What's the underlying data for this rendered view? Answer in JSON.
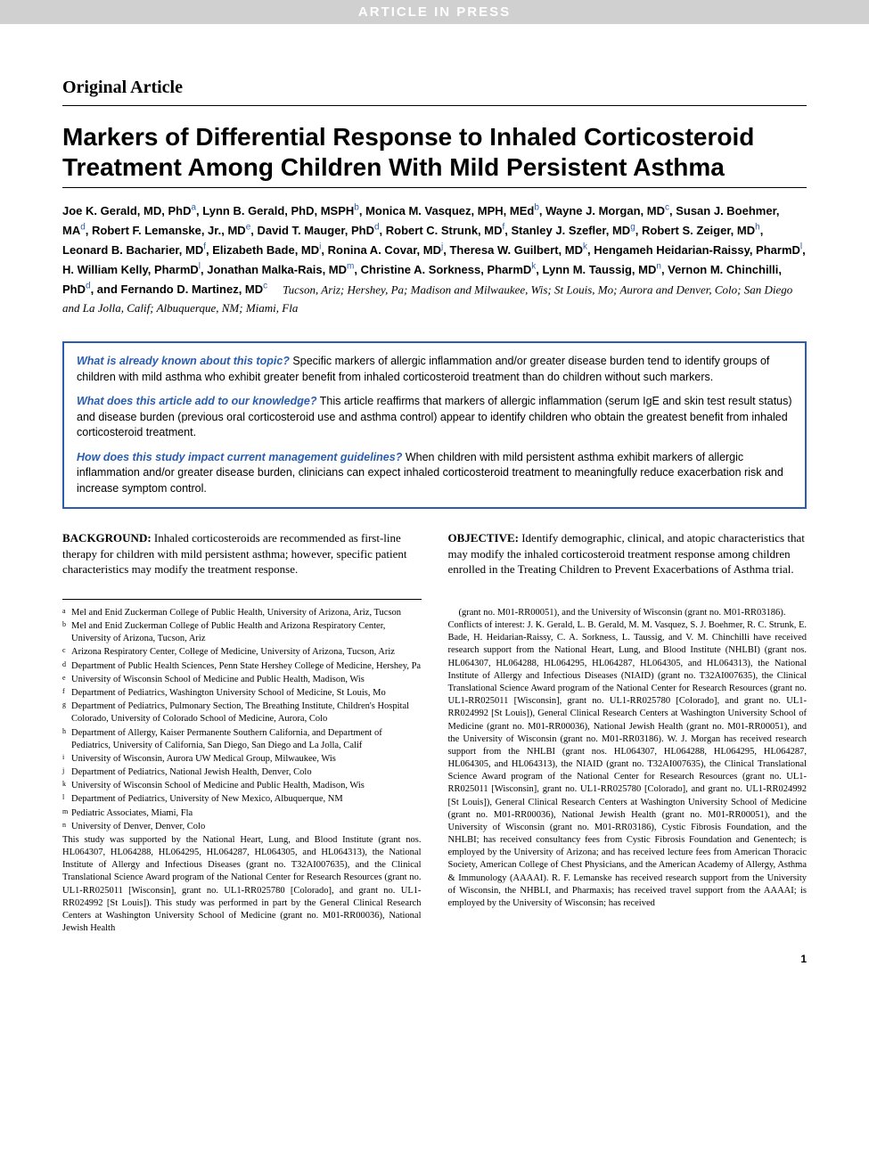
{
  "banner": "ARTICLE IN PRESS",
  "article_type": "Original Article",
  "title": "Markers of Differential Response to Inhaled Corticosteroid Treatment Among Children With Mild Persistent Asthma",
  "authors": [
    {
      "name": "Joe K. Gerald, MD, PhD",
      "sup": "a"
    },
    {
      "name": "Lynn B. Gerald, PhD, MSPH",
      "sup": "b"
    },
    {
      "name": "Monica M. Vasquez, MPH, MEd",
      "sup": "b"
    },
    {
      "name": "Wayne J. Morgan, MD",
      "sup": "c"
    },
    {
      "name": "Susan J. Boehmer, MA",
      "sup": "d"
    },
    {
      "name": "Robert F. Lemanske, Jr., MD",
      "sup": "e"
    },
    {
      "name": "David T. Mauger, PhD",
      "sup": "d"
    },
    {
      "name": "Robert C. Strunk, MD",
      "sup": "f"
    },
    {
      "name": "Stanley J. Szefler, MD",
      "sup": "g"
    },
    {
      "name": "Robert S. Zeiger, MD",
      "sup": "h"
    },
    {
      "name": "Leonard B. Bacharier, MD",
      "sup": "f"
    },
    {
      "name": "Elizabeth Bade, MD",
      "sup": "i"
    },
    {
      "name": "Ronina A. Covar, MD",
      "sup": "j"
    },
    {
      "name": "Theresa W. Guilbert, MD",
      "sup": "k"
    },
    {
      "name": "Hengameh Heidarian-Raissy, PharmD",
      "sup": "l"
    },
    {
      "name": "H. William Kelly, PharmD",
      "sup": "l"
    },
    {
      "name": "Jonathan Malka-Rais, MD",
      "sup": "m"
    },
    {
      "name": "Christine A. Sorkness, PharmD",
      "sup": "k"
    },
    {
      "name": "Lynn M. Taussig, MD",
      "sup": "n"
    },
    {
      "name": "Vernon M. Chinchilli, PhD",
      "sup": "d"
    },
    {
      "name": "Fernando D. Martinez, MD",
      "sup": "c"
    }
  ],
  "locations": "Tucson, Ariz; Hershey, Pa; Madison and Milwaukee, Wis; St Louis, Mo; Aurora and Denver, Colo; San Diego and La Jolla, Calif; Albuquerque, NM; Miami, Fla",
  "highlights": [
    {
      "q": "What is already known about this topic?",
      "a": "Specific markers of allergic inflammation and/or greater disease burden tend to identify groups of children with mild asthma who exhibit greater benefit from inhaled corticosteroid treatment than do children without such markers."
    },
    {
      "q": "What does this article add to our knowledge?",
      "a": "This article reaffirms that markers of allergic inflammation (serum IgE and skin test result status) and disease burden (previous oral corticosteroid use and asthma control) appear to identify children who obtain the greatest benefit from inhaled corticosteroid treatment."
    },
    {
      "q": "How does this study impact current management guidelines?",
      "a": "When children with mild persistent asthma exhibit markers of allergic inflammation and/or greater disease burden, clinicians can expect inhaled corticosteroid treatment to meaningfully reduce exacerbation risk and increase symptom control."
    }
  ],
  "abstract": {
    "background": {
      "label": "BACKGROUND:",
      "text": "Inhaled corticosteroids are recommended as first-line therapy for children with mild persistent asthma; however, specific patient characteristics may modify the treatment response."
    },
    "objective": {
      "label": "OBJECTIVE:",
      "text": "Identify demographic, clinical, and atopic characteristics that may modify the inhaled corticosteroid treatment response among children enrolled in the Treating Children to Prevent Exacerbations of Asthma trial."
    }
  },
  "affiliations": [
    {
      "sup": "a",
      "text": "Mel and Enid Zuckerman College of Public Health, University of Arizona, Ariz, Tucson"
    },
    {
      "sup": "b",
      "text": "Mel and Enid Zuckerman College of Public Health and Arizona Respiratory Center, University of Arizona, Tucson, Ariz"
    },
    {
      "sup": "c",
      "text": "Arizona Respiratory Center, College of Medicine, University of Arizona, Tucson, Ariz"
    },
    {
      "sup": "d",
      "text": "Department of Public Health Sciences, Penn State Hershey College of Medicine, Hershey, Pa"
    },
    {
      "sup": "e",
      "text": "University of Wisconsin School of Medicine and Public Health, Madison, Wis"
    },
    {
      "sup": "f",
      "text": "Department of Pediatrics, Washington University School of Medicine, St Louis, Mo"
    },
    {
      "sup": "g",
      "text": "Department of Pediatrics, Pulmonary Section, The Breathing Institute, Children's Hospital Colorado, University of Colorado School of Medicine, Aurora, Colo"
    },
    {
      "sup": "h",
      "text": "Department of Allergy, Kaiser Permanente Southern California, and Department of Pediatrics, University of California, San Diego, San Diego and La Jolla, Calif"
    },
    {
      "sup": "i",
      "text": "University of Wisconsin, Aurora UW Medical Group, Milwaukee, Wis"
    },
    {
      "sup": "j",
      "text": "Department of Pediatrics, National Jewish Health, Denver, Colo"
    },
    {
      "sup": "k",
      "text": "University of Wisconsin School of Medicine and Public Health, Madison, Wis"
    },
    {
      "sup": "l",
      "text": "Department of Pediatrics, University of New Mexico, Albuquerque, NM"
    },
    {
      "sup": "m",
      "text": "Pediatric Associates, Miami, Fla"
    },
    {
      "sup": "n",
      "text": "University of Denver, Denver, Colo"
    }
  ],
  "support_col1": "This study was supported by the National Heart, Lung, and Blood Institute (grant nos. HL064307, HL064288, HL064295, HL064287, HL064305, and HL064313), the National Institute of Allergy and Infectious Diseases (grant no. T32AI007635), and the Clinical Translational Science Award program of the National Center for Research Resources (grant no. UL1-RR025011 [Wisconsin], grant no. UL1-RR025780 [Colorado], and grant no. UL1-RR024992 [St Louis]). This study was performed in part by the General Clinical Research Centers at Washington University School of Medicine (grant no. M01-RR00036), National Jewish Health",
  "support_col2_para1": "(grant no. M01-RR00051), and the University of Wisconsin (grant no. M01-RR03186).",
  "conflicts": "Conflicts of interest: J. K. Gerald, L. B. Gerald, M. M. Vasquez, S. J. Boehmer, R. C. Strunk, E. Bade, H. Heidarian-Raissy, C. A. Sorkness, L. Taussig, and V. M. Chinchilli have received research support from the National Heart, Lung, and Blood Institute (NHLBI) (grant nos. HL064307, HL064288, HL064295, HL064287, HL064305, and HL064313), the National Institute of Allergy and Infectious Diseases (NIAID) (grant no. T32AI007635), the Clinical Translational Science Award program of the National Center for Research Resources (grant no. UL1-RR025011 [Wisconsin], grant no. UL1-RR025780 [Colorado], and grant no. UL1-RR024992 [St Louis]), General Clinical Research Centers at Washington University School of Medicine (grant no. M01-RR00036), National Jewish Health (grant no. M01-RR00051), and the University of Wisconsin (grant no. M01-RR03186). W. J. Morgan has received research support from the NHLBI (grant nos. HL064307, HL064288, HL064295, HL064287, HL064305, and HL064313), the NIAID (grant no. T32AI007635), the Clinical Translational Science Award program of the National Center for Research Resources (grant no. UL1-RR025011 [Wisconsin], grant no. UL1-RR025780 [Colorado], and grant no. UL1-RR024992 [St Louis]), General Clinical Research Centers at Washington University School of Medicine (grant no. M01-RR00036), National Jewish Health (grant no. M01-RR00051), and the University of Wisconsin (grant no. M01-RR03186), Cystic Fibrosis Foundation, and the NHLBI; has received consultancy fees from Cystic Fibrosis Foundation and Genentech; is employed by the University of Arizona; and has received lecture fees from American Thoracic Society, American College of Chest Physicians, and the American Academy of Allergy, Asthma & Immunology (AAAAI). R. F. Lemanske has received research support from the University of Wisconsin, the NHBLI, and Pharmaxis; has received travel support from the AAAAI; is employed by the University of Wisconsin; has received",
  "page_number": "1",
  "colors": {
    "link": "#2a5db0",
    "banner_bg": "#d0d0d0",
    "banner_fg": "#ffffff"
  }
}
